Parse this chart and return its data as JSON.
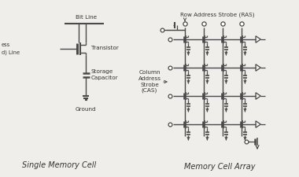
{
  "bg_color": "#f0eeea",
  "line_color": "#4a4a4a",
  "text_color": "#333333",
  "title_left": "Single Memory Cell",
  "title_right": "Memory Cell Array",
  "label_bit_line": "Bit Line",
  "label_transistor": "Transistor",
  "label_storage_cap": "Storage\nCapacitor",
  "label_ground": "Ground",
  "label_row": "Row Address Strobe (RAS)",
  "label_col": "Column\nAddress\nStrobe\n(CAS)",
  "font_size_label": 5.2,
  "font_size_title": 7.0
}
